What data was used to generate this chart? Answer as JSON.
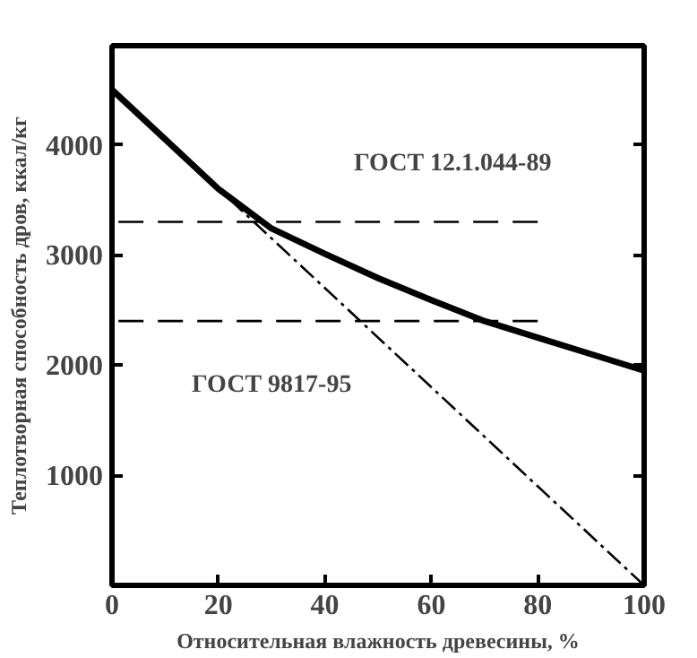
{
  "chart_data": {
    "type": "line",
    "xlabel": "Относительная влажность древесины, %",
    "ylabel": "Теплотворная способность дров, ккал/кг",
    "xlim": [
      0,
      100
    ],
    "ylim": [
      0,
      4900
    ],
    "xticks": [
      0,
      20,
      40,
      60,
      80,
      100
    ],
    "yticks": [
      1000,
      2000,
      3000,
      4000
    ],
    "grid": false,
    "series": [
      {
        "color": "#000000",
        "line_style": "solid",
        "x": [
          0,
          10,
          20,
          30,
          40,
          50,
          60,
          70,
          80,
          90,
          100
        ],
        "values": [
          4500,
          4050,
          3600,
          3240,
          3010,
          2790,
          2590,
          2400,
          2250,
          2100,
          1950
        ]
      },
      {
        "color": "#000000",
        "line_style": "dashed",
        "x": [
          0,
          80
        ],
        "values": [
          3300,
          3300
        ]
      },
      {
        "color": "#000000",
        "line_style": "dashed",
        "x": [
          0,
          80
        ],
        "values": [
          2400,
          2400
        ]
      },
      {
        "color": "#000000",
        "line_style": "dashdot",
        "x": [
          0,
          100
        ],
        "values": [
          4500,
          0
        ]
      }
    ],
    "annotations": [
      "ГОСТ 12.1.044-89",
      "ГОСТ 9817-95"
    ]
  }
}
